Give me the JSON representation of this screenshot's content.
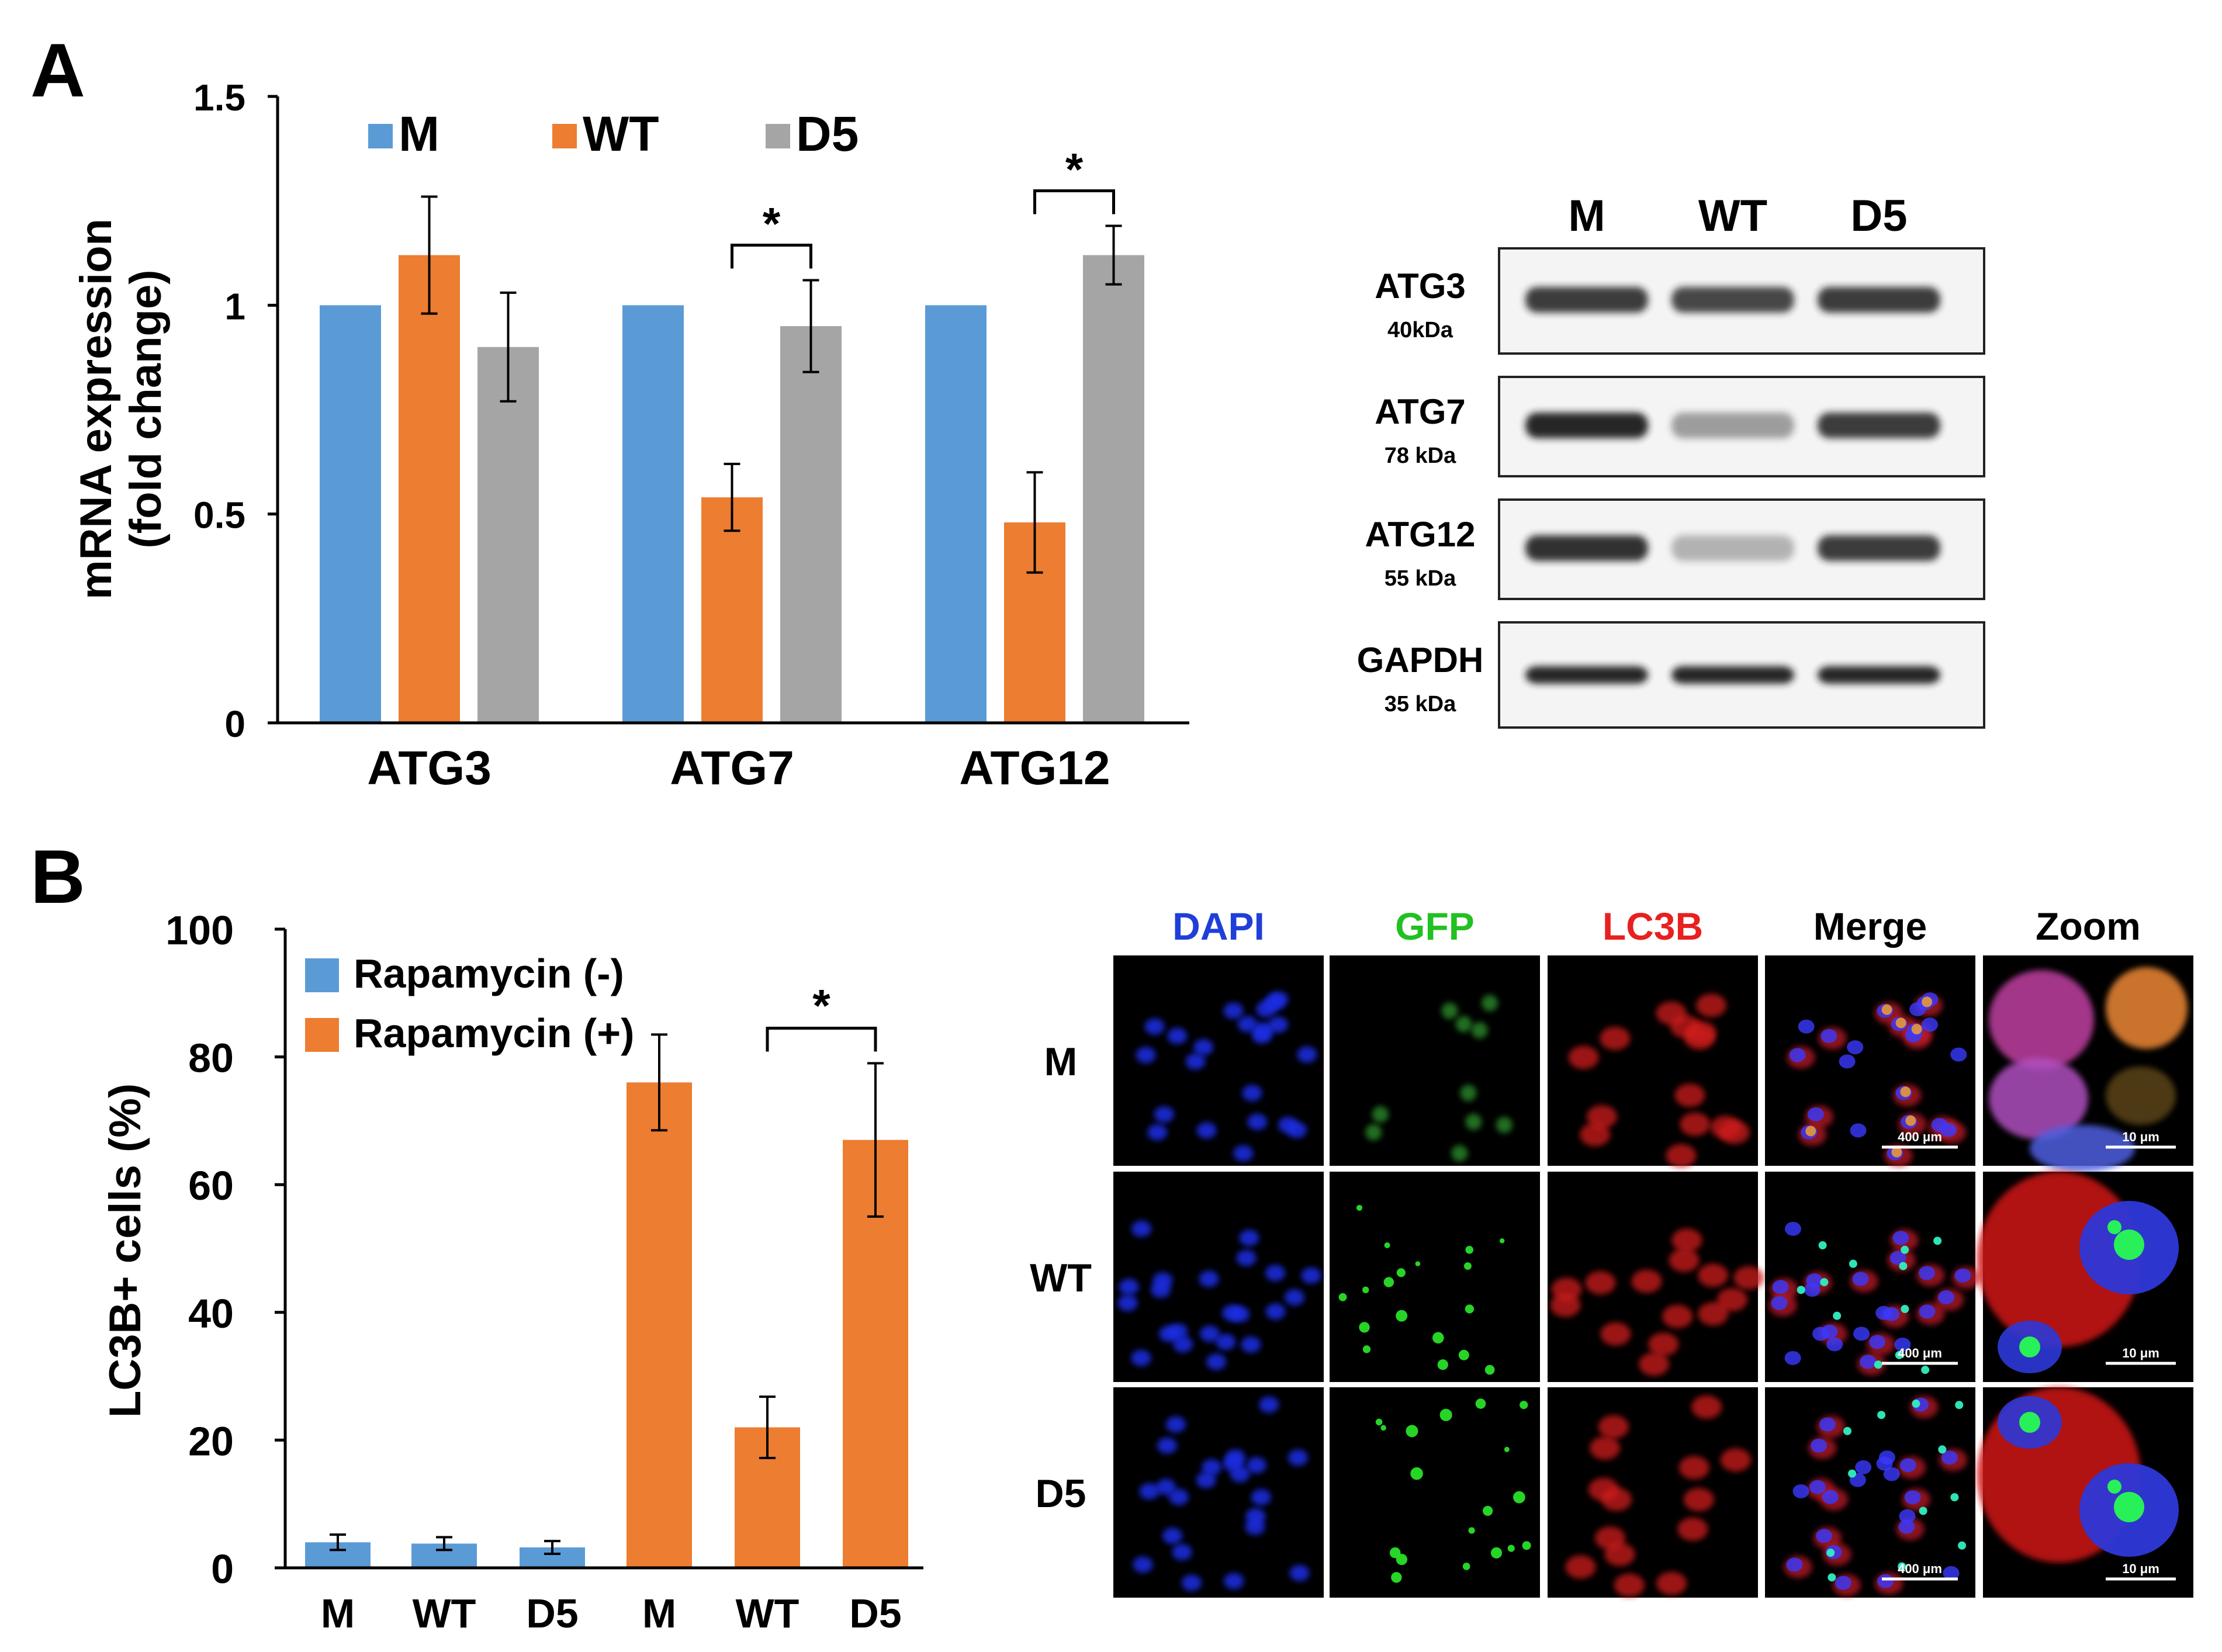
{
  "panels": {
    "a": {
      "letter": "A"
    },
    "b": {
      "letter": "B"
    }
  },
  "colors": {
    "M": "#5b9bd5",
    "WT": "#ed7d31",
    "D5": "#a5a5a5"
  },
  "chart_data": [
    {
      "type": "bar",
      "ylabel_line1": "mRNA expression",
      "ylabel_line2": "(fold change)",
      "categories": [
        "ATG3",
        "ATG7",
        "ATG12"
      ],
      "yticks": [
        "0",
        "0.5",
        "1",
        "1.5"
      ],
      "ylim": [
        0,
        1.5
      ],
      "legend_position": "top",
      "series": [
        {
          "name": "M",
          "values": [
            1.0,
            1.0,
            1.0
          ],
          "errors": [
            0,
            0,
            0
          ]
        },
        {
          "name": "WT",
          "values": [
            1.12,
            0.54,
            0.48
          ],
          "errors": [
            0.14,
            0.08,
            0.12
          ]
        },
        {
          "name": "D5",
          "values": [
            0.9,
            0.95,
            1.12
          ],
          "errors": [
            0.13,
            0.11,
            0.07
          ]
        }
      ],
      "significance": [
        {
          "category": "ATG7",
          "between": [
            "WT",
            "D5"
          ],
          "label": "*"
        },
        {
          "category": "ATG12",
          "between": [
            "WT",
            "D5"
          ],
          "label": "*"
        }
      ]
    },
    {
      "type": "bar",
      "ylabel": "LC3B+ cells (%)",
      "categories": [
        "M",
        "WT",
        "D5",
        "M",
        "WT",
        "D5"
      ],
      "yticks": [
        "0",
        "20",
        "40",
        "60",
        "80",
        "100"
      ],
      "ylim": [
        0,
        100
      ],
      "legend_position": "top-left",
      "series": [
        {
          "name": "Rapamycin (-)",
          "values": [
            4,
            3.8,
            3.2,
            null,
            null,
            null
          ],
          "errors": [
            1.2,
            1,
            1
          ]
        },
        {
          "name": "Rapamycin (+)",
          "values": [
            null,
            null,
            null,
            76,
            22,
            67
          ],
          "errors": [
            7.5,
            4.8,
            12
          ]
        }
      ],
      "significance": [
        {
          "between_indices": [
            4,
            5
          ],
          "label": "*"
        }
      ]
    }
  ],
  "western_blot": {
    "lanes": [
      "M",
      "WT",
      "D5"
    ],
    "rows": [
      {
        "protein": "ATG3",
        "size": "40kDa",
        "intensity": [
          0.85,
          0.8,
          0.85
        ]
      },
      {
        "protein": "ATG7",
        "size": "78 kDa",
        "intensity": [
          0.95,
          0.4,
          0.85
        ]
      },
      {
        "protein": "ATG12",
        "size": "55 kDa",
        "intensity": [
          0.9,
          0.3,
          0.85
        ]
      },
      {
        "protein": "GAPDH",
        "size": "35 kDa",
        "intensity": [
          0.95,
          0.95,
          0.95
        ]
      }
    ]
  },
  "microscopy": {
    "columns": [
      {
        "label": "DAPI",
        "color": "#1f3fd8"
      },
      {
        "label": "GFP",
        "color": "#22c022"
      },
      {
        "label": "LC3B",
        "color": "#e82020"
      },
      {
        "label": "Merge",
        "color": "#000000"
      },
      {
        "label": "Zoom",
        "color": "#000000"
      }
    ],
    "rows": [
      "M",
      "WT",
      "D5"
    ],
    "scale_merge": "400 μm",
    "scale_zoom": "10 μm"
  }
}
